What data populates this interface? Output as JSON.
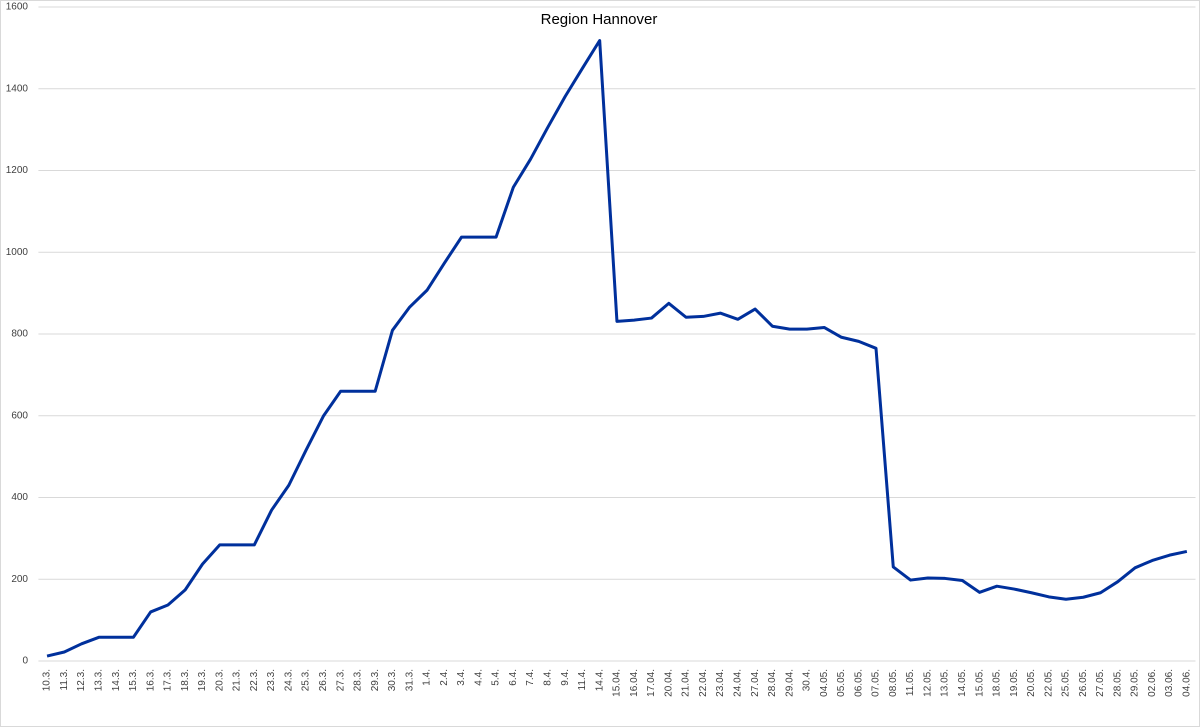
{
  "chart_data": {
    "type": "line",
    "title": "Region Hannover",
    "categories": [
      "10.3.",
      "11.3.",
      "12.3.",
      "13.3.",
      "14.3.",
      "15.3.",
      "16.3.",
      "17.3.",
      "18.3.",
      "19.3.",
      "20.3.",
      "21.3.",
      "22.3.",
      "23.3.",
      "24.3.",
      "25.3.",
      "26.3.",
      "27.3.",
      "28.3.",
      "29.3.",
      "30.3.",
      "31.3.",
      "1.4.",
      "2.4.",
      "3.4.",
      "4.4.",
      "5.4.",
      "6.4.",
      "7.4.",
      "8.4.",
      "9.4.",
      "11.4.",
      "14.4.",
      "15.04.",
      "16.04.",
      "17.04.",
      "20.04.",
      "21.04.",
      "22.04.",
      "23.04.",
      "24.04.",
      "27.04.",
      "28.04.",
      "29.04.",
      "30.4.",
      "04.05.",
      "05.05.",
      "06.05.",
      "07.05.",
      "08.05.",
      "11.05.",
      "12.05.",
      "13.05.",
      "14.05.",
      "15.05.",
      "18.05.",
      "19.05.",
      "20.05.",
      "22.05.",
      "25.05.",
      "26.05.",
      "27.05.",
      "28.05.",
      "29.05.",
      "02.06.",
      "03.06.",
      "04.06."
    ],
    "series": [
      {
        "color": "#00309c",
        "values": [
          12,
          22,
          42,
          58,
          58,
          58,
          120,
          137,
          174,
          237,
          284,
          284,
          284,
          369,
          430,
          516,
          599,
          660,
          660,
          660,
          809,
          866,
          907,
          973,
          1037,
          1037,
          1037,
          1159,
          1228,
          1306,
          1381,
          1450,
          1518,
          831,
          834,
          839,
          875,
          841,
          843,
          851,
          836,
          861,
          819,
          812,
          812,
          816,
          792,
          782,
          765,
          230,
          198,
          203,
          202,
          197,
          168,
          183,
          176,
          167,
          157,
          151,
          156,
          167,
          194,
          228,
          246,
          259,
          268
        ]
      }
    ],
    "ylim": [
      0,
      1600
    ],
    "yticks": [
      0,
      200,
      400,
      600,
      800,
      1000,
      1200,
      1400,
      1600
    ],
    "grid": true
  }
}
